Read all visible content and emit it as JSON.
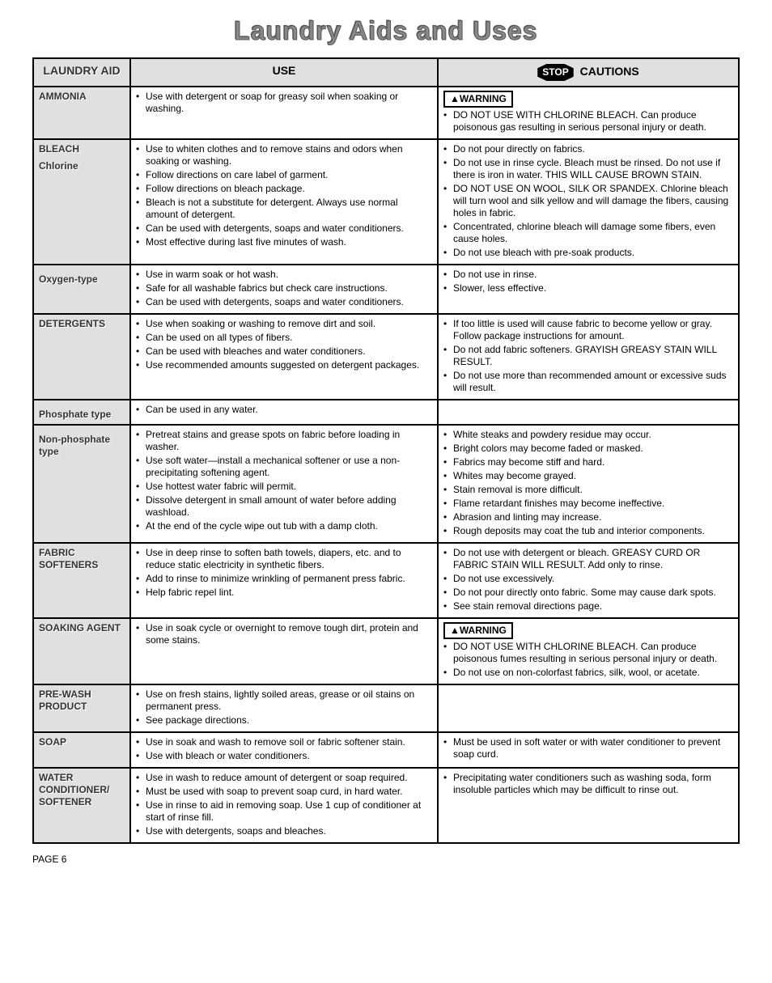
{
  "title": "Laundry Aids and Uses",
  "headers": {
    "aid": "LAUNDRY AID",
    "use": "USE",
    "cautions": "CAUTIONS",
    "stop": "STOP"
  },
  "warning_label": "▲WARNING",
  "rows": {
    "ammonia": {
      "aid": "AMMONIA",
      "use": [
        "Use with detergent or soap for greasy soil when soaking or washing."
      ],
      "cautions_warn": true,
      "cautions": [
        "DO NOT USE WITH CHLORINE BLEACH. Can produce poisonous gas resulting in serious personal injury or death."
      ]
    },
    "bleach": {
      "aid": "BLEACH",
      "sub1": "Chlorine",
      "sub2": "Oxygen-type",
      "use1": [
        "Use to whiten clothes and to remove stains and odors when soaking or washing.",
        "Follow directions on care label of garment.",
        "Follow directions on bleach package.",
        "Bleach is not a substitute for detergent. Always use normal amount of detergent.",
        "Can be used with detergents, soaps and water conditioners.",
        "Most effective during last five minutes of wash."
      ],
      "use2": [
        "Use in warm soak or hot wash.",
        "Safe for all washable fabrics but check care instructions.",
        "Can be used with detergents, soaps and water conditioners."
      ],
      "cautions1": [
        "Do not pour directly on fabrics.",
        "Do not use in rinse cycle. Bleach must be rinsed. Do not use if there is iron in water. THIS WILL CAUSE BROWN STAIN.",
        "DO NOT USE ON WOOL, SILK OR SPANDEX. Chlorine bleach will turn wool and silk yellow and will damage the fibers, causing holes in fabric.",
        "Concentrated, chlorine bleach will damage some fibers, even cause holes.",
        "Do not use bleach with pre-soak products."
      ],
      "cautions2": [
        "Do not use in rinse.",
        "Slower, less effective."
      ]
    },
    "detergents": {
      "aid": "DETERGENTS",
      "sub_phos": "Phosphate type",
      "sub_nonphos": "Non-phosphate type",
      "use_main": [
        "Use when soaking or washing to remove dirt and soil.",
        "Can be used on all types of fibers.",
        "Can be used with bleaches and water conditioners.",
        "Use recommended amounts suggested on detergent packages."
      ],
      "use_phos": [
        "Can be used in any water."
      ],
      "use_nonphos": [
        "Pretreat stains and grease spots on fabric before loading in washer.",
        "Use soft water—install a mechanical softener or use a non-precipitating softening agent.",
        "Use hottest water fabric will permit.",
        "Dissolve detergent in small amount of water before adding washload.",
        "At the end of the cycle wipe out tub with a damp cloth."
      ],
      "cautions_main": [
        "If too little is used will cause fabric to become yellow or gray. Follow package instructions for amount.",
        "Do not add fabric softeners. GRAYISH GREASY STAIN WILL RESULT.",
        "Do not use more than recommended amount or excessive suds will result."
      ],
      "cautions_nonphos": [
        "White steaks and powdery residue may occur.",
        "Bright colors may become faded or masked.",
        "Fabrics may become stiff and hard.",
        "Whites may become grayed.",
        "Stain removal is more difficult.",
        "Flame retardant finishes may become ineffective.",
        "Abrasion and linting may increase.",
        "Rough deposits may coat the tub and interior components."
      ]
    },
    "fabric_soft": {
      "aid": "FABRIC SOFTENERS",
      "use": [
        "Use in deep rinse to soften bath towels, diapers, etc. and to reduce static electricity in synthetic fibers.",
        "Add to rinse to minimize wrinkling of permanent press fabric.",
        "Help fabric repel lint."
      ],
      "cautions": [
        "Do not use with detergent or bleach. GREASY CURD OR FABRIC STAIN WILL RESULT. Add only to rinse.",
        "Do not use excessively.",
        "Do not pour directly onto fabric. Some may cause dark spots.",
        "See stain removal directions page."
      ]
    },
    "soaking": {
      "aid": "SOAKING AGENT",
      "use": [
        "Use in soak cycle or overnight to remove tough dirt, protein and some stains."
      ],
      "cautions_warn": true,
      "cautions": [
        "DO NOT USE WITH CHLORINE BLEACH. Can produce poisonous fumes resulting in serious personal injury or death.",
        "Do not use on non-colorfast fabrics, silk, wool, or acetate."
      ]
    },
    "prewash": {
      "aid": "PRE-WASH PRODUCT",
      "use": [
        "Use on fresh stains, lightly soiled areas, grease or oil stains on permanent press.",
        "See package directions."
      ],
      "cautions": []
    },
    "soap": {
      "aid": "SOAP",
      "use": [
        "Use in soak and wash to remove soil or fabric softener stain.",
        "Use with bleach or water conditioners."
      ],
      "cautions": [
        "Must be used in soft water or with water conditioner to prevent soap curd."
      ]
    },
    "water_cond": {
      "aid": "WATER CONDITIONER/ SOFTENER",
      "use": [
        "Use in wash to reduce amount of detergent or soap required.",
        "Must be used with soap to prevent soap curd, in hard water.",
        "Use in rinse to aid in removing soap. Use 1 cup of conditioner at start of rinse fill.",
        "Use with detergents, soaps and bleaches."
      ],
      "cautions": [
        "Precipitating water conditioners such as washing soda, form insoluble particles which may be difficult to rinse out."
      ]
    }
  },
  "page_num": "PAGE 6"
}
